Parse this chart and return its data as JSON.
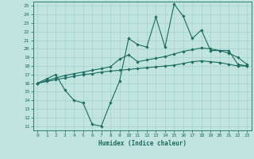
{
  "title": "",
  "xlabel": "Humidex (Indice chaleur)",
  "xlim": [
    -0.5,
    23.5
  ],
  "ylim": [
    10.5,
    25.5
  ],
  "xticks": [
    0,
    1,
    2,
    3,
    4,
    5,
    6,
    7,
    8,
    9,
    10,
    11,
    12,
    13,
    14,
    15,
    16,
    17,
    18,
    19,
    20,
    21,
    22,
    23
  ],
  "yticks": [
    11,
    12,
    13,
    14,
    15,
    16,
    17,
    18,
    19,
    20,
    21,
    22,
    23,
    24,
    25
  ],
  "bg_color": "#c2e4df",
  "line_color": "#1a6b60",
  "grid_color": "#9ecec7",
  "line1_x": [
    0,
    1,
    2,
    3,
    4,
    5,
    6,
    7,
    8,
    9,
    10,
    11,
    12,
    13,
    14,
    15,
    16,
    17,
    18,
    19,
    20,
    21,
    22,
    23
  ],
  "line1_y": [
    16.0,
    16.5,
    17.0,
    15.2,
    14.0,
    13.7,
    11.2,
    11.0,
    13.7,
    16.2,
    21.2,
    20.5,
    20.2,
    23.7,
    20.2,
    25.2,
    23.8,
    21.2,
    22.2,
    19.8,
    19.8,
    19.8,
    18.2,
    18.0
  ],
  "line2_x": [
    0,
    1,
    2,
    3,
    4,
    5,
    6,
    7,
    8,
    9,
    10,
    11,
    12,
    13,
    14,
    15,
    16,
    17,
    18,
    19,
    20,
    21,
    22,
    23
  ],
  "line2_y": [
    16.0,
    16.3,
    16.6,
    16.9,
    17.1,
    17.3,
    17.5,
    17.7,
    17.9,
    18.8,
    19.3,
    18.5,
    18.7,
    18.9,
    19.1,
    19.4,
    19.7,
    19.9,
    20.1,
    20.0,
    19.8,
    19.5,
    19.0,
    18.2
  ],
  "line3_x": [
    0,
    1,
    2,
    3,
    4,
    5,
    6,
    7,
    8,
    9,
    10,
    11,
    12,
    13,
    14,
    15,
    16,
    17,
    18,
    19,
    20,
    21,
    22,
    23
  ],
  "line3_y": [
    16.0,
    16.2,
    16.4,
    16.6,
    16.8,
    17.0,
    17.1,
    17.3,
    17.4,
    17.5,
    17.6,
    17.7,
    17.8,
    17.9,
    18.0,
    18.1,
    18.3,
    18.5,
    18.6,
    18.5,
    18.4,
    18.2,
    18.0,
    18.0
  ],
  "marker": "D",
  "markersize": 1.8,
  "linewidth": 0.8
}
